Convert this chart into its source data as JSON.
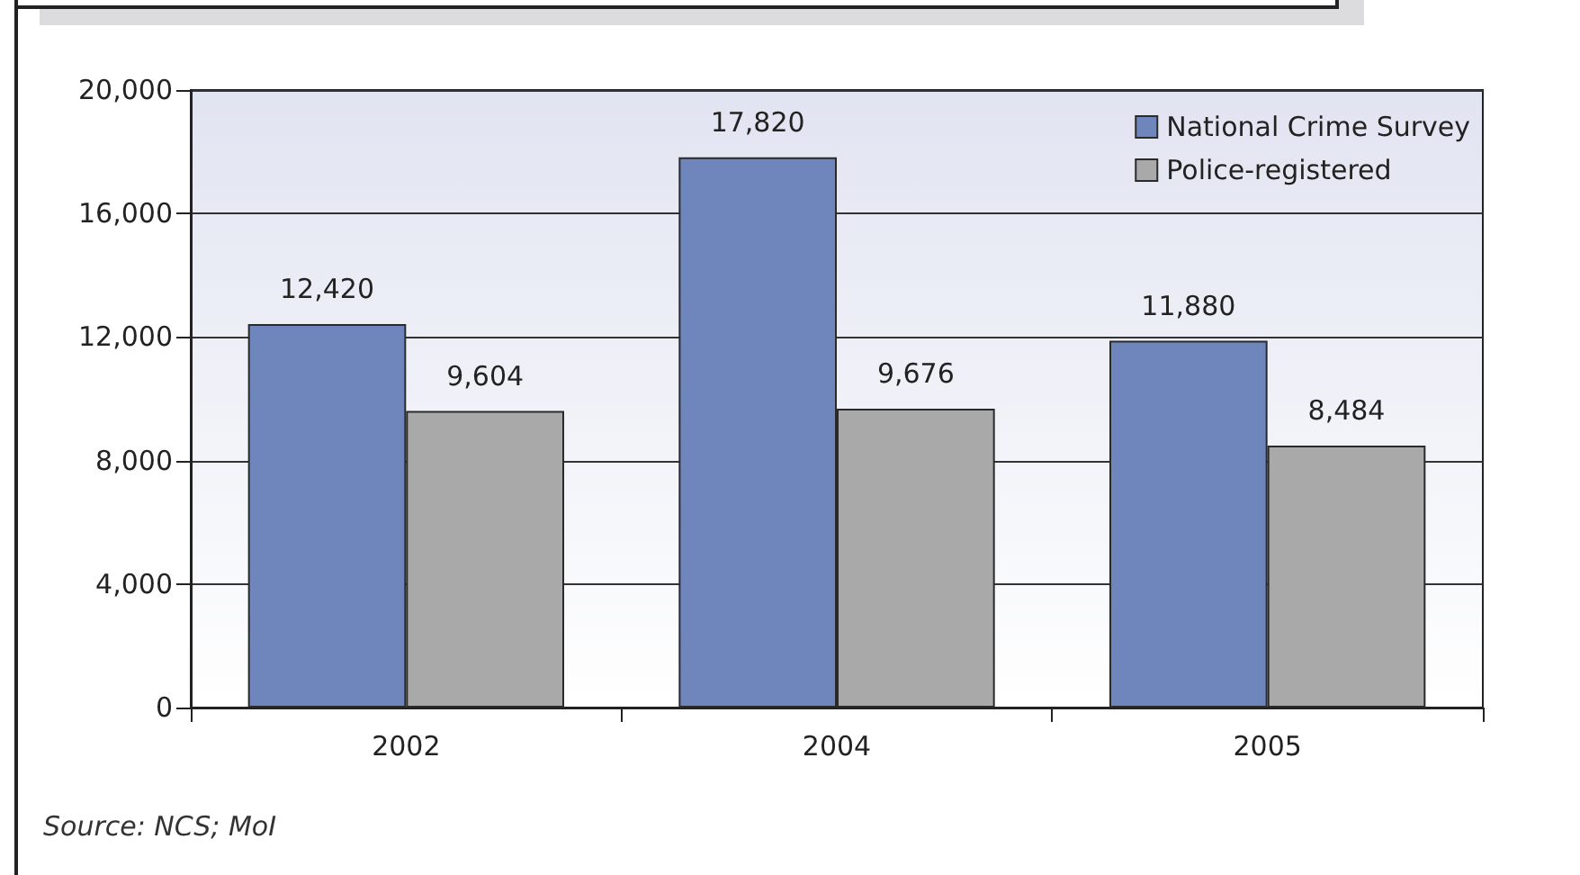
{
  "chart_data": {
    "type": "bar",
    "categories": [
      "2002",
      "2004",
      "2005"
    ],
    "series": [
      {
        "name": "National Crime Survey",
        "color": "#6f86bd",
        "values": [
          12420,
          17820,
          11880
        ],
        "value_labels": [
          "12,420",
          "17,820",
          "11,880"
        ]
      },
      {
        "name": "Police-registered",
        "color": "#a9a9a9",
        "values": [
          9604,
          9676,
          8484
        ],
        "value_labels": [
          "9,604",
          "9,676",
          "8,484"
        ]
      }
    ],
    "ylim": [
      0,
      20000
    ],
    "yticks": [
      {
        "value": 0,
        "label": "0"
      },
      {
        "value": 4000,
        "label": "4,000"
      },
      {
        "value": 8000,
        "label": "8,000"
      },
      {
        "value": 12000,
        "label": "12,000"
      },
      {
        "value": 16000,
        "label": "16,000"
      },
      {
        "value": 20000,
        "label": "20,000"
      }
    ],
    "grid": "y",
    "legend": "top right",
    "annotations": [
      "Source: NCS; MoI"
    ]
  }
}
